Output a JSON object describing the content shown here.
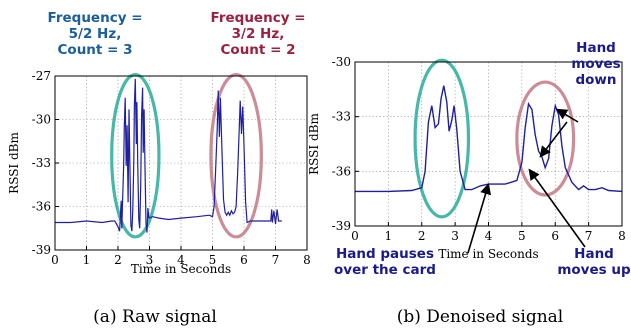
{
  "colors": {
    "signal": "#1f1fa0",
    "teal": "#46b8a8",
    "rose": "#cc8c96",
    "annot_blue": "#1a5e9c",
    "annot_red": "#9e1f3f",
    "annot_navy": "#1a1a8c",
    "grid": "#9a9a9a"
  },
  "chart_data": [
    {
      "type": "line",
      "caption": "(a) Raw signal",
      "xlabel": "Time in Seconds",
      "ylabel": "RSSI dBm",
      "xlim": [
        0,
        8
      ],
      "ylim": [
        -39,
        -27
      ],
      "xticks": [
        0,
        1,
        2,
        3,
        4,
        5,
        6,
        7,
        8
      ],
      "yticks": [
        -39,
        -36,
        -33,
        -30,
        -27
      ],
      "grid": true,
      "annotations": [
        {
          "id": "left",
          "lines": [
            "Frequency =",
            "5/2 Hz,",
            "Count = 3"
          ],
          "color": "annot_blue"
        },
        {
          "id": "right",
          "lines": [
            "Frequency =",
            "3/2 Hz,",
            "Count = 2"
          ],
          "color": "annot_red"
        }
      ],
      "ellipses": [
        {
          "cx": 2.55,
          "cy": -32.5,
          "rx": 0.75,
          "ry": 5.6,
          "color": "teal"
        },
        {
          "cx": 5.75,
          "cy": -32.5,
          "rx": 0.8,
          "ry": 5.6,
          "color": "rose"
        }
      ],
      "series": [
        {
          "points": [
            [
              0,
              -37.1
            ],
            [
              0.5,
              -37.1
            ],
            [
              1.0,
              -37.0
            ],
            [
              1.5,
              -37.1
            ],
            [
              1.8,
              -37.0
            ],
            [
              1.9,
              -37.0
            ],
            [
              2.0,
              -37.4
            ],
            [
              2.05,
              -37.7
            ],
            [
              2.1,
              -35.6
            ],
            [
              2.12,
              -37.5
            ],
            [
              2.18,
              -33.0
            ],
            [
              2.2,
              -30.5
            ],
            [
              2.23,
              -28.5
            ],
            [
              2.26,
              -33.2
            ],
            [
              2.29,
              -30.4
            ],
            [
              2.32,
              -35.7
            ],
            [
              2.35,
              -29.3
            ],
            [
              2.38,
              -33.5
            ],
            [
              2.41,
              -37.3
            ],
            [
              2.44,
              -37.7
            ],
            [
              2.47,
              -36.2
            ],
            [
              2.5,
              -32.9
            ],
            [
              2.52,
              -29.0
            ],
            [
              2.55,
              -27.2
            ],
            [
              2.58,
              -31.7
            ],
            [
              2.6,
              -28.8
            ],
            [
              2.63,
              -33.3
            ],
            [
              2.66,
              -36.9
            ],
            [
              2.69,
              -37.5
            ],
            [
              2.72,
              -34.6
            ],
            [
              2.75,
              -29.7
            ],
            [
              2.78,
              -27.8
            ],
            [
              2.8,
              -32.3
            ],
            [
              2.83,
              -29.3
            ],
            [
              2.86,
              -33.7
            ],
            [
              2.89,
              -37.2
            ],
            [
              2.92,
              -37.8
            ],
            [
              2.95,
              -36.1
            ],
            [
              2.98,
              -36.8
            ],
            [
              3.1,
              -36.7
            ],
            [
              3.3,
              -36.8
            ],
            [
              3.6,
              -36.9
            ],
            [
              4.0,
              -36.8
            ],
            [
              4.5,
              -36.7
            ],
            [
              4.9,
              -36.6
            ],
            [
              5.0,
              -36.7
            ],
            [
              5.05,
              -36.0
            ],
            [
              5.1,
              -33.5
            ],
            [
              5.15,
              -30.7
            ],
            [
              5.18,
              -28.0
            ],
            [
              5.22,
              -31.2
            ],
            [
              5.25,
              -28.5
            ],
            [
              5.3,
              -32.0
            ],
            [
              5.35,
              -35.5
            ],
            [
              5.4,
              -36.4
            ],
            [
              5.45,
              -36.6
            ],
            [
              5.5,
              -36.4
            ],
            [
              5.55,
              -36.6
            ],
            [
              5.6,
              -36.3
            ],
            [
              5.65,
              -36.5
            ],
            [
              5.7,
              -36.4
            ],
            [
              5.75,
              -36.0
            ],
            [
              5.8,
              -33.6
            ],
            [
              5.85,
              -30.5
            ],
            [
              5.88,
              -28.7
            ],
            [
              5.92,
              -31.0
            ],
            [
              5.96,
              -29.1
            ],
            [
              6.0,
              -31.8
            ],
            [
              6.05,
              -35.7
            ],
            [
              6.1,
              -37.1
            ],
            [
              6.2,
              -37.0
            ],
            [
              6.5,
              -37.0
            ],
            [
              6.85,
              -37.0
            ],
            [
              6.88,
              -36.2
            ],
            [
              6.9,
              -37.1
            ],
            [
              6.95,
              -36.3
            ],
            [
              7.0,
              -37.2
            ],
            [
              7.05,
              -36.2
            ],
            [
              7.1,
              -37.0
            ],
            [
              7.2,
              -37.0
            ]
          ]
        }
      ]
    },
    {
      "type": "line",
      "caption": "(b) Denoised signal",
      "xlabel": "Time in Seconds",
      "ylabel": "RSSI dBm",
      "xlim": [
        0,
        8
      ],
      "ylim": [
        -39,
        -30
      ],
      "xticks": [
        0,
        1,
        2,
        3,
        4,
        5,
        6,
        7,
        8
      ],
      "yticks": [
        -39,
        -36,
        -33,
        -30
      ],
      "grid": true,
      "annotations": [
        {
          "id": "pause",
          "lines": [
            "Hand pauses",
            "over the card"
          ],
          "color": "annot_navy"
        },
        {
          "id": "down",
          "lines": [
            "Hand",
            "moves",
            "down"
          ],
          "color": "annot_navy"
        },
        {
          "id": "up",
          "lines": [
            "Hand",
            "moves up"
          ],
          "color": "annot_navy"
        }
      ],
      "ellipses": [
        {
          "cx": 2.6,
          "cy": -34.2,
          "rx": 0.8,
          "ry": 4.3,
          "color": "teal"
        },
        {
          "cx": 5.7,
          "cy": -34.2,
          "rx": 0.85,
          "ry": 3.1,
          "color": "rose"
        }
      ],
      "series": [
        {
          "points": [
            [
              0,
              -37.1
            ],
            [
              1.0,
              -37.1
            ],
            [
              1.7,
              -37.05
            ],
            [
              2.0,
              -36.9
            ],
            [
              2.1,
              -36.0
            ],
            [
              2.2,
              -33.3
            ],
            [
              2.3,
              -32.4
            ],
            [
              2.4,
              -33.6
            ],
            [
              2.5,
              -33.4
            ],
            [
              2.58,
              -32.0
            ],
            [
              2.66,
              -31.3
            ],
            [
              2.75,
              -32.2
            ],
            [
              2.82,
              -33.8
            ],
            [
              2.9,
              -33.2
            ],
            [
              2.97,
              -32.4
            ],
            [
              3.05,
              -33.7
            ],
            [
              3.15,
              -36.0
            ],
            [
              3.3,
              -37.0
            ],
            [
              3.5,
              -37.0
            ],
            [
              3.75,
              -36.8
            ],
            [
              4.0,
              -36.7
            ],
            [
              4.5,
              -36.7
            ],
            [
              4.85,
              -36.5
            ],
            [
              5.0,
              -35.5
            ],
            [
              5.1,
              -33.6
            ],
            [
              5.2,
              -32.3
            ],
            [
              5.3,
              -32.6
            ],
            [
              5.4,
              -34.0
            ],
            [
              5.5,
              -34.9
            ],
            [
              5.6,
              -35.2
            ],
            [
              5.7,
              -35.8
            ],
            [
              5.8,
              -35.3
            ],
            [
              5.9,
              -33.5
            ],
            [
              6.0,
              -32.4
            ],
            [
              6.1,
              -32.9
            ],
            [
              6.2,
              -34.6
            ],
            [
              6.3,
              -35.8
            ],
            [
              6.5,
              -36.6
            ],
            [
              6.7,
              -37.0
            ],
            [
              6.85,
              -36.8
            ],
            [
              7.0,
              -37.0
            ],
            [
              7.2,
              -37.0
            ],
            [
              7.4,
              -36.9
            ],
            [
              7.6,
              -37.05
            ],
            [
              8.0,
              -37.1
            ]
          ]
        }
      ]
    }
  ]
}
